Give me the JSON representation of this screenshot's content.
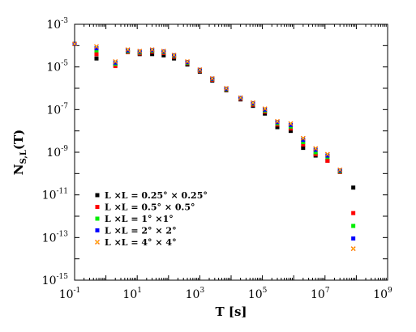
{
  "chart_data": {
    "type": "scatter",
    "xscale": "log",
    "yscale": "log",
    "xlim": [
      0.1,
      1000000000
    ],
    "ylim": [
      1e-15,
      0.001
    ],
    "xlabel": "T [s]",
    "ylabel_main": "N",
    "ylabel_sub": "S,L",
    "ylabel_tail": "(T)",
    "x_ticks": [
      {
        "base": "10",
        "exp": "-1",
        "value": 0.1
      },
      {
        "base": "10",
        "exp": "1",
        "value": 10
      },
      {
        "base": "10",
        "exp": "3",
        "value": 1000
      },
      {
        "base": "10",
        "exp": "5",
        "value": 100000
      },
      {
        "base": "10",
        "exp": "7",
        "value": 10000000
      },
      {
        "base": "10",
        "exp": "9",
        "value": 1000000000
      }
    ],
    "y_ticks": [
      {
        "base": "10",
        "exp": "-3",
        "value": 0.001
      },
      {
        "base": "10",
        "exp": "-5",
        "value": 1e-05
      },
      {
        "base": "10",
        "exp": "-7",
        "value": 1e-07
      },
      {
        "base": "10",
        "exp": "-9",
        "value": 1e-09
      },
      {
        "base": "10",
        "exp": "-11",
        "value": 1e-11
      },
      {
        "base": "10",
        "exp": "-13",
        "value": 1e-13
      },
      {
        "base": "10",
        "exp": "-15",
        "value": 1e-15
      }
    ],
    "legend_position": "lower-left",
    "series": [
      {
        "name": "L ×L = 0.25° × 0.25°",
        "color": "#000000",
        "marker": "square",
        "x": [
          0.1,
          0.5,
          2,
          5,
          12,
          30,
          70,
          150,
          400,
          1000,
          2500,
          7000,
          20000,
          50000,
          120000,
          300000,
          800000,
          2000000,
          5000000,
          12000000,
          30000000,
          80000000
        ],
        "y": [
          0.00012,
          2.5e-05,
          1.3e-05,
          5e-05,
          4e-05,
          4e-05,
          3.5e-05,
          2.5e-05,
          1.3e-05,
          6e-06,
          2.3e-06,
          8e-07,
          3e-07,
          1.5e-07,
          6.5e-08,
          1.5e-08,
          1e-08,
          1.6e-09,
          7e-10,
          4e-10,
          1.2e-10,
          2.2e-11
        ]
      },
      {
        "name": "L ×L = 0.5° × 0.5°",
        "color": "#ff0000",
        "marker": "square",
        "x": [
          0.1,
          0.5,
          2,
          5,
          12,
          30,
          70,
          150,
          400,
          1000,
          2500,
          7000,
          20000,
          50000,
          120000,
          300000,
          800000,
          2000000,
          5000000,
          12000000,
          30000000,
          80000000
        ],
        "y": [
          0.00012,
          4e-05,
          1.1e-05,
          5e-05,
          4.3e-05,
          5.2e-05,
          4.5e-05,
          3e-05,
          1.5e-05,
          6.5e-06,
          2.5e-06,
          8.5e-07,
          3.2e-07,
          1.7e-07,
          8e-08,
          2e-08,
          1.3e-08,
          2.3e-09,
          8e-10,
          4e-10,
          1.2e-10,
          1.4e-12
        ]
      },
      {
        "name": "L ×L = 1° ×1°",
        "color": "#00ee00",
        "marker": "square",
        "x": [
          0.1,
          0.5,
          2,
          5,
          12,
          30,
          70,
          150,
          400,
          1000,
          2500,
          7000,
          20000,
          50000,
          120000,
          300000,
          800000,
          2000000,
          5000000,
          12000000,
          30000000,
          80000000
        ],
        "y": [
          0.00012,
          6e-05,
          1.4e-05,
          5.5e-05,
          4.8e-05,
          5.8e-05,
          5e-05,
          3.3e-05,
          1.6e-05,
          7e-06,
          2.7e-06,
          9e-07,
          3.4e-07,
          1.9e-07,
          9e-08,
          2.3e-08,
          1.6e-08,
          3e-09,
          1e-09,
          6e-10,
          1.3e-10,
          3.5e-13
        ]
      },
      {
        "name": "L ×L = 2° × 2°",
        "color": "#0000ff",
        "marker": "square",
        "x": [
          0.1,
          0.5,
          2,
          5,
          12,
          30,
          70,
          150,
          400,
          1000,
          2500,
          7000,
          20000,
          50000,
          120000,
          300000,
          800000,
          2000000,
          5000000,
          12000000,
          30000000,
          80000000
        ],
        "y": [
          0.00012,
          7.5e-05,
          1.6e-05,
          6e-05,
          5.2e-05,
          6.2e-05,
          5.3e-05,
          3.5e-05,
          1.7e-05,
          7.3e-06,
          2.8e-06,
          9.5e-07,
          3.5e-07,
          2e-07,
          1e-07,
          2.6e-08,
          1.9e-08,
          3.8e-09,
          1.3e-09,
          7e-10,
          1.4e-10,
          9e-14
        ]
      },
      {
        "name": "L ×L = 4° × 4°",
        "color": "#ff7700",
        "marker": "cross",
        "x": [
          0.1,
          0.5,
          2,
          5,
          12,
          30,
          70,
          150,
          400,
          1000,
          2500,
          7000,
          20000,
          50000,
          120000,
          300000,
          800000,
          2000000,
          5000000,
          12000000,
          30000000,
          80000000
        ],
        "y": [
          0.00012,
          9e-05,
          1.8e-05,
          6.5e-05,
          5.5e-05,
          6.5e-05,
          5.5e-05,
          3.6e-05,
          1.8e-05,
          7.5e-06,
          2.9e-06,
          1e-06,
          3.6e-07,
          2.1e-07,
          1.1e-07,
          2.8e-08,
          2.2e-08,
          4.5e-09,
          1.5e-09,
          8e-10,
          1.5e-10,
          3e-14
        ]
      }
    ]
  }
}
